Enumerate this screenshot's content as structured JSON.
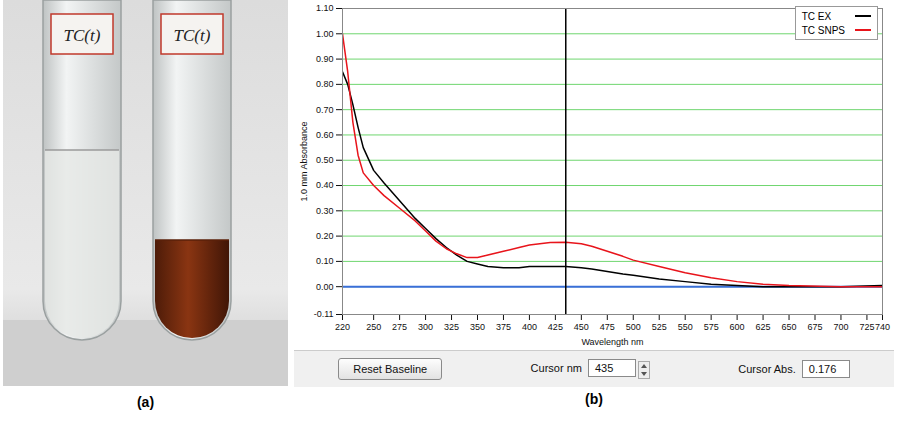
{
  "photo": {
    "panel_label": "(a)",
    "tube_labels": [
      "TC(t)",
      "TC(t)"
    ]
  },
  "chart_data": {
    "type": "line",
    "panel_label": "(b)",
    "xlabel": "Wavelength nm",
    "ylabel": "1.0 mm Absorbance",
    "xlim": [
      220,
      740
    ],
    "xticks": [
      220,
      250,
      275,
      300,
      325,
      350,
      375,
      400,
      425,
      450,
      475,
      500,
      525,
      550,
      575,
      600,
      625,
      650,
      675,
      700,
      725,
      740
    ],
    "ylim": [
      -0.11,
      1.1
    ],
    "yticks": [
      -0.11,
      {
        "value": 0,
        "label": "0.00"
      },
      {
        "value": 0.1,
        "label": "0.10"
      },
      {
        "value": 0.2,
        "label": "0.20"
      },
      {
        "value": 0.3,
        "label": "0.30"
      },
      {
        "value": 0.4,
        "label": "0.40"
      },
      {
        "value": 0.5,
        "label": "0.50"
      },
      {
        "value": 0.6,
        "label": "0.60"
      },
      {
        "value": 0.7,
        "label": "0.70"
      },
      {
        "value": 0.8,
        "label": "0.80"
      },
      {
        "value": 0.9,
        "label": "0.90"
      },
      {
        "value": 1,
        "label": "1.00"
      },
      {
        "value": 1.1,
        "label": "1.10"
      }
    ],
    "grid": true,
    "legend": "top-right",
    "baseline": 0,
    "cursor_nm": 435,
    "cursor_abs": 0.176,
    "cursor_nm_label": "Cursor nm",
    "cursor_abs_label": "Cursor Abs.",
    "button": "Reset Baseline",
    "x": [
      220,
      225,
      230,
      235,
      240,
      250,
      260,
      275,
      290,
      300,
      310,
      320,
      330,
      340,
      350,
      360,
      375,
      390,
      400,
      410,
      420,
      435,
      450,
      460,
      475,
      490,
      500,
      525,
      550,
      575,
      600,
      625,
      650,
      700,
      740
    ],
    "series": [
      {
        "name": "TC EX",
        "color": "#000000",
        "values": [
          0.85,
          0.8,
          0.72,
          0.63,
          0.55,
          0.46,
          0.41,
          0.34,
          0.27,
          0.23,
          0.19,
          0.155,
          0.125,
          0.1,
          0.09,
          0.08,
          0.075,
          0.075,
          0.08,
          0.08,
          0.08,
          0.08,
          0.075,
          0.07,
          0.06,
          0.05,
          0.045,
          0.03,
          0.02,
          0.01,
          0.005,
          0.0,
          0.0,
          0.0,
          0.005
        ]
      },
      {
        "name": "TC SNPS",
        "color": "#e8141b",
        "values": [
          1.0,
          0.85,
          0.65,
          0.52,
          0.45,
          0.4,
          0.36,
          0.31,
          0.26,
          0.22,
          0.18,
          0.15,
          0.13,
          0.115,
          0.115,
          0.125,
          0.14,
          0.155,
          0.165,
          0.17,
          0.175,
          0.176,
          0.17,
          0.16,
          0.14,
          0.12,
          0.105,
          0.08,
          0.055,
          0.035,
          0.02,
          0.01,
          0.005,
          0.0,
          0.0
        ]
      }
    ]
  }
}
